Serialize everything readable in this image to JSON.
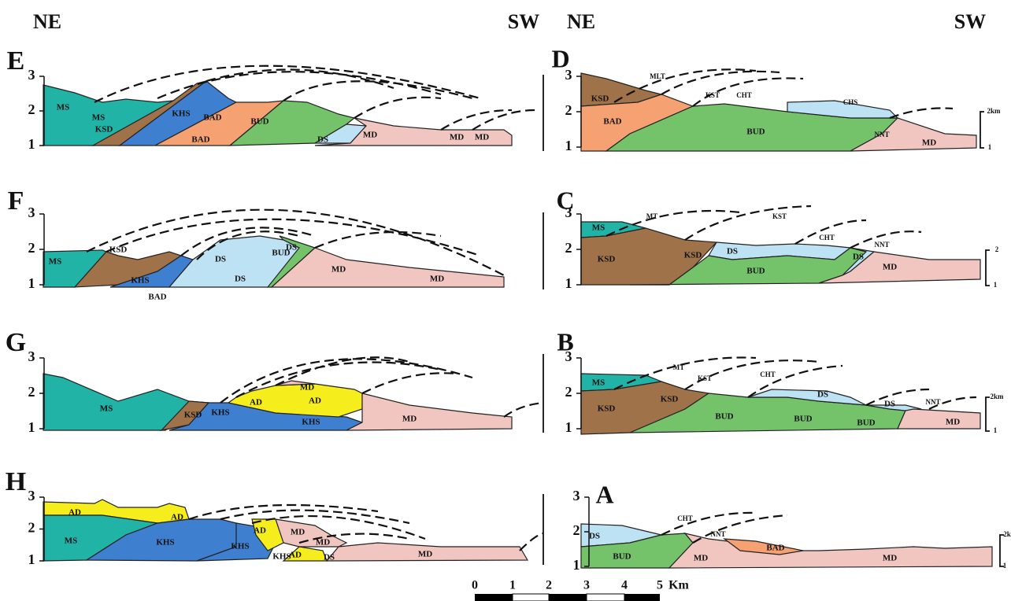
{
  "header": {
    "left": {
      "ne": "NE",
      "sw": "SW"
    },
    "right": {
      "ne": "NE",
      "sw": "SW"
    }
  },
  "panels": [
    {
      "letter": "E",
      "ticks": [
        3,
        2,
        1
      ],
      "labels": [
        "MS",
        "MS",
        "KSD",
        "KHS",
        "BAD",
        "BAD",
        "BUD",
        "DS",
        "MD",
        "MD",
        "MD"
      ],
      "faults": [],
      "units": []
    },
    {
      "letter": "D",
      "ticks": [
        3,
        2,
        1
      ],
      "labels": [
        "KSD",
        "BAD",
        "BUD",
        "MD"
      ],
      "faults": [
        "MLT",
        "KST",
        "CHT",
        "CHS",
        "NNT"
      ],
      "units": [
        "2km",
        "1"
      ]
    },
    {
      "letter": "F",
      "ticks": [
        3,
        2,
        1
      ],
      "labels": [
        "MS",
        "KSD",
        "KHS",
        "BAD",
        "DS",
        "DS",
        "BUD",
        "DS",
        "MD",
        "MD"
      ],
      "faults": [],
      "units": []
    },
    {
      "letter": "C",
      "ticks": [
        3,
        2,
        1
      ],
      "labels": [
        "MS",
        "KSD",
        "KSD",
        "DS",
        "BUD",
        "DS",
        "MD"
      ],
      "faults": [
        "MT",
        "KST",
        "CHT",
        "NNT"
      ],
      "units": [
        "2",
        "1"
      ]
    },
    {
      "letter": "G",
      "ticks": [
        3,
        2,
        1
      ],
      "labels": [
        "MS",
        "KSD",
        "KHS",
        "AD",
        "AD",
        "MD",
        "KHS",
        "MD"
      ],
      "faults": [],
      "units": []
    },
    {
      "letter": "B",
      "ticks": [
        3,
        2,
        1
      ],
      "labels": [
        "MS",
        "KSD",
        "KSD",
        "BUD",
        "BUD",
        "BUD",
        "DS",
        "DS",
        "MD"
      ],
      "faults": [
        "MT",
        "KST",
        "CHT",
        "NNT"
      ],
      "units": [
        "2km",
        "1"
      ]
    },
    {
      "letter": "H",
      "ticks": [
        3,
        2,
        1
      ],
      "labels": [
        "AD",
        "AD",
        "MS",
        "KHS",
        "KHS",
        "AD",
        "MD",
        "MD",
        "KHS",
        "AD",
        "DS",
        "MD"
      ],
      "faults": [],
      "units": []
    },
    {
      "letter": "A",
      "ticks": [
        3,
        2,
        1
      ],
      "labels": [
        "DS",
        "BUD",
        "MD",
        "BAD",
        "MD"
      ],
      "faults": [
        "CHT",
        "NNT"
      ],
      "units": [
        "2k",
        "1"
      ]
    }
  ],
  "scale_bar": {
    "ticks": [
      "0",
      "1",
      "2",
      "3",
      "4",
      "5"
    ],
    "unit": "Km"
  }
}
